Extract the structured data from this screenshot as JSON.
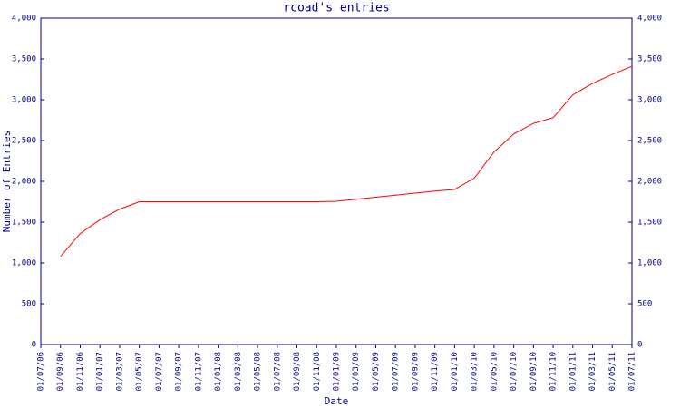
{
  "chart_data": {
    "type": "line",
    "title": "rcoad's entries",
    "xlabel": "Date",
    "ylabel": "Number of Entries",
    "categories": [
      "01/07/06",
      "01/09/06",
      "01/11/06",
      "01/01/07",
      "01/03/07",
      "01/05/07",
      "01/07/07",
      "01/09/07",
      "01/11/07",
      "01/01/08",
      "01/03/08",
      "01/05/08",
      "01/07/08",
      "01/09/08",
      "01/11/08",
      "01/01/09",
      "01/03/09",
      "01/05/09",
      "01/07/09",
      "01/09/09",
      "01/11/09",
      "01/01/10",
      "01/03/10",
      "01/05/10",
      "01/07/10",
      "01/09/10",
      "01/11/10",
      "01/01/11",
      "01/03/11",
      "01/05/11",
      "01/07/11"
    ],
    "series": [
      {
        "color": "#ff0000",
        "values": [
          null,
          1080,
          1360,
          1530,
          1660,
          1750,
          1750,
          1750,
          1750,
          1750,
          1750,
          1750,
          1750,
          1750,
          1750,
          1755,
          1780,
          1805,
          1830,
          1855,
          1880,
          1900,
          2040,
          2360,
          2580,
          2710,
          2780,
          3060,
          3200,
          3310,
          3410
        ]
      }
    ],
    "ylim": [
      0,
      4000
    ],
    "yticks": [
      0,
      500,
      {
        "value": 1000,
        "label": "1,000"
      },
      {
        "value": 1500,
        "label": "1,500"
      },
      {
        "value": 2000,
        "label": "2,000"
      },
      {
        "value": 2500,
        "label": "2,500"
      },
      {
        "value": 3000,
        "label": "3,000"
      },
      {
        "value": 3500,
        "label": "3,500"
      },
      {
        "value": 4000,
        "label": "4,000"
      }
    ],
    "y2lim": [
      0,
      4000
    ],
    "y2ticks": [
      0,
      500,
      {
        "value": 1000,
        "label": "1,000"
      },
      {
        "value": 1500,
        "label": "1,500"
      },
      {
        "value": 2000,
        "label": "2,000"
      },
      {
        "value": 2500,
        "label": "2,500"
      },
      {
        "value": 3000,
        "label": "3,000"
      },
      {
        "value": 3500,
        "label": "3,500"
      },
      {
        "value": 4000,
        "label": "4,000"
      }
    ],
    "grid": false
  }
}
